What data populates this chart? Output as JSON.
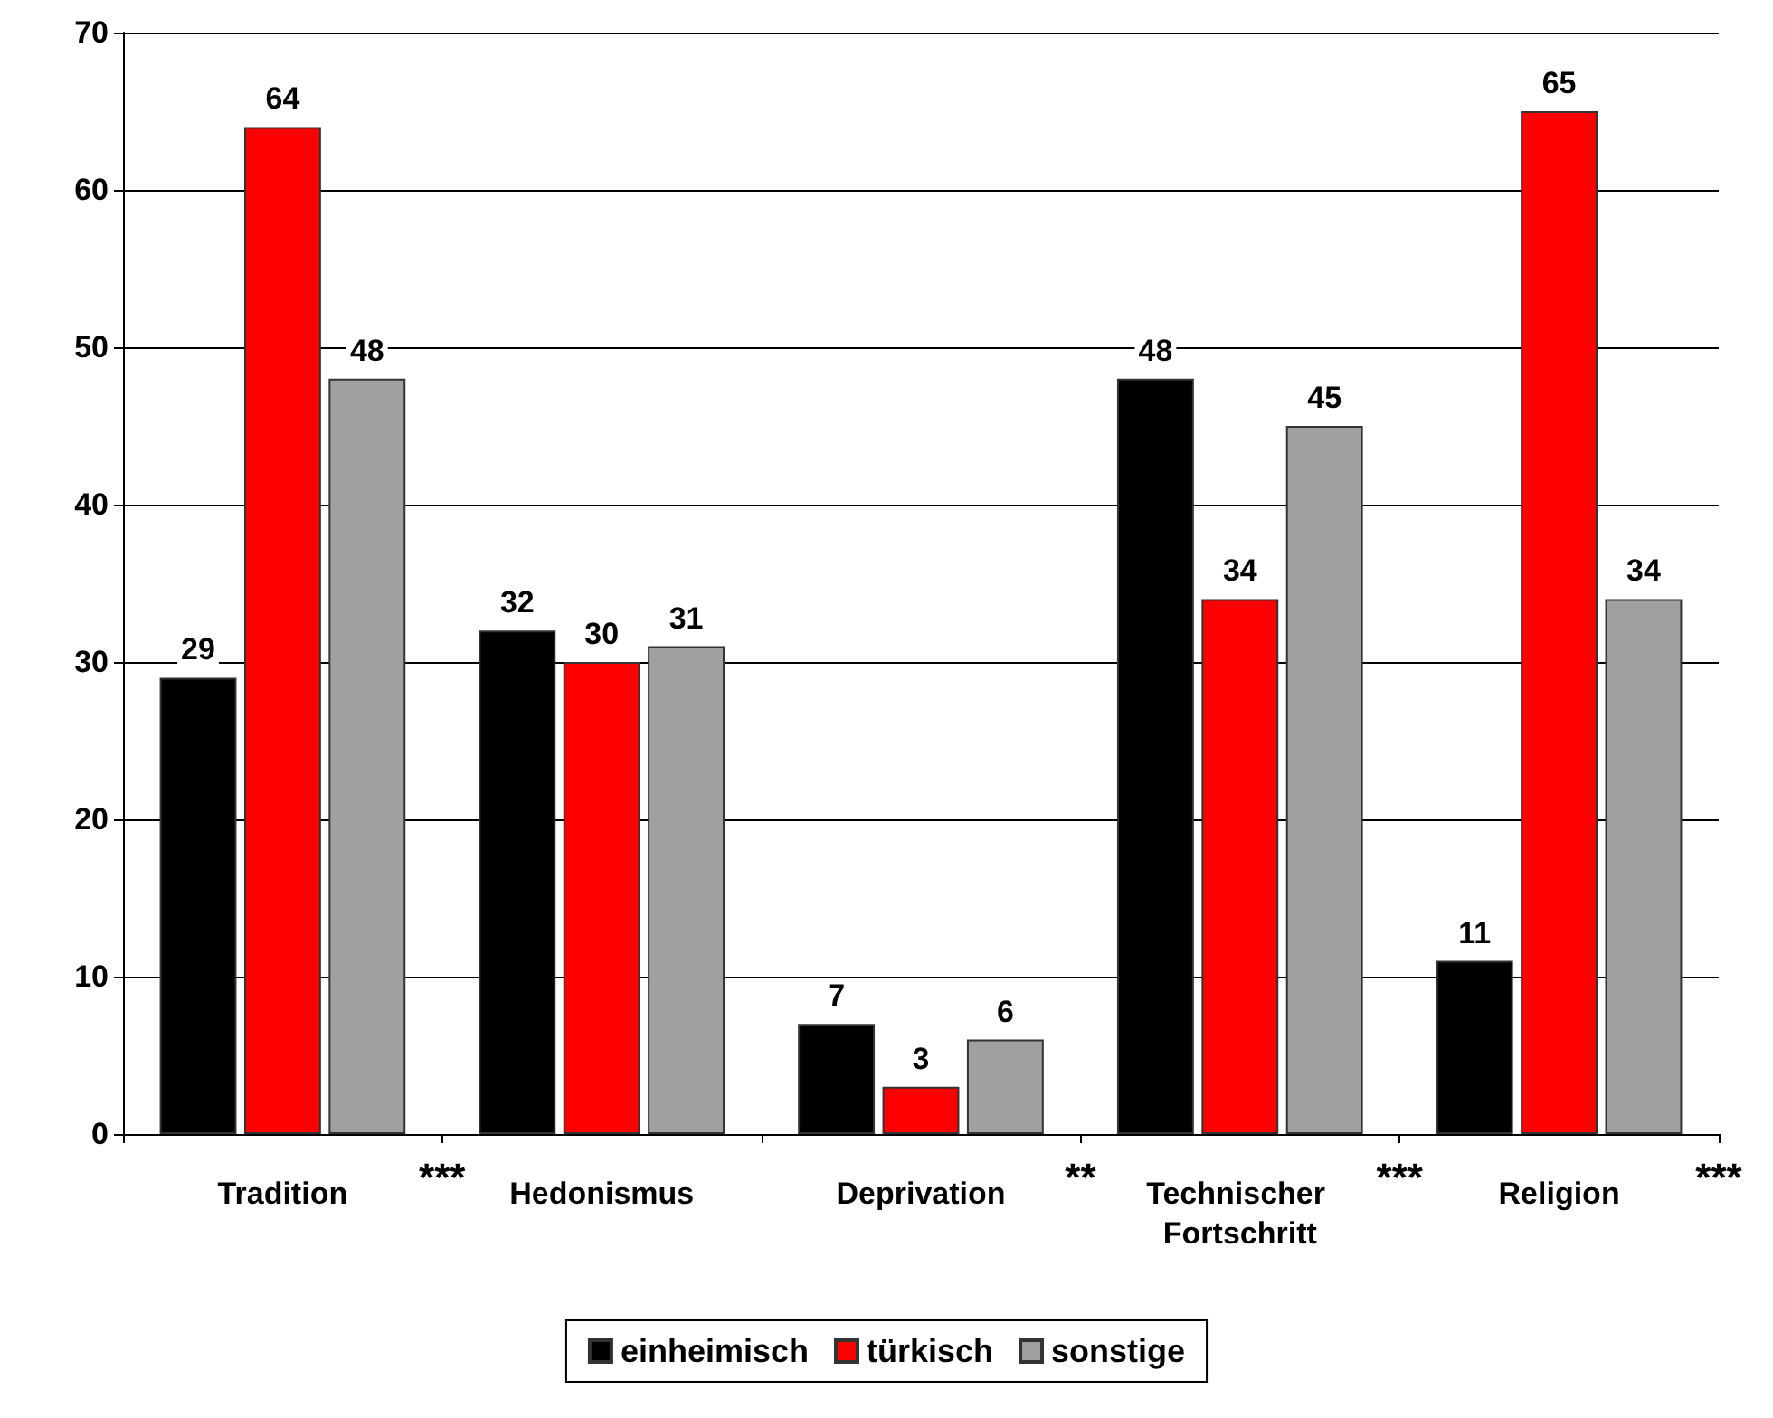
{
  "chart_data": {
    "type": "bar",
    "categories": [
      "Tradition",
      "Hedonismus",
      "Deprivation",
      "Technischer Fortschritt",
      "Religion"
    ],
    "series": [
      {
        "name": "einheimisch",
        "color": "#000000",
        "values": [
          29,
          32,
          7,
          48,
          11
        ]
      },
      {
        "name": "türkisch",
        "color": "#ff0000",
        "values": [
          64,
          30,
          3,
          34,
          65
        ]
      },
      {
        "name": "sonstige",
        "color": "#a0a0a0",
        "values": [
          48,
          31,
          6,
          45,
          34
        ]
      }
    ],
    "ylim": [
      0,
      70
    ],
    "yticks": [
      0,
      10,
      20,
      30,
      40,
      50,
      60,
      70
    ],
    "grid": "y",
    "legend": "bottom",
    "data_labels": true,
    "annotations": [
      "***",
      "**",
      "***",
      "***"
    ]
  }
}
